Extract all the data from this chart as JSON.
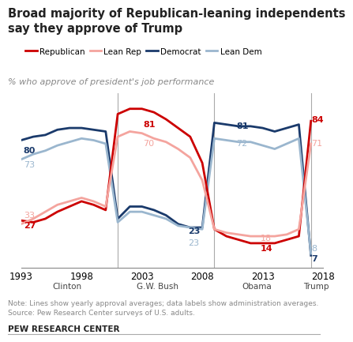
{
  "title": "Broad majority of Republican-leaning independents\nsay they approve of Trump",
  "subtitle": "% who approve of president's job performance",
  "note": "Note: Lines show yearly approval averages; data labels show administration averages.\nSource: Pew Research Center surveys of U.S. adults.",
  "source_label": "PEW RESEARCH CENTER",
  "colors": {
    "republican": "#CC0000",
    "lean_rep": "#F4A49E",
    "democrat": "#1A3A6B",
    "lean_dem": "#9AB6CE"
  },
  "series": {
    "republican": {
      "years": [
        1993,
        1994,
        1995,
        1996,
        1997,
        1998,
        1999,
        2000,
        2001,
        2002,
        2003,
        2004,
        2005,
        2006,
        2007,
        2008,
        2009,
        2010,
        2011,
        2012,
        2013,
        2014,
        2015,
        2016,
        2017
      ],
      "values": [
        27,
        26,
        28,
        32,
        35,
        38,
        36,
        33,
        88,
        91,
        91,
        89,
        85,
        80,
        75,
        60,
        22,
        18,
        16,
        14,
        14,
        14,
        16,
        18,
        84
      ]
    },
    "lean_rep": {
      "years": [
        1993,
        1994,
        1995,
        1996,
        1997,
        1998,
        1999,
        2000,
        2001,
        2002,
        2003,
        2004,
        2005,
        2006,
        2007,
        2008,
        2009,
        2010,
        2011,
        2012,
        2013,
        2014,
        2015,
        2016,
        2017
      ],
      "values": [
        25,
        28,
        32,
        36,
        38,
        40,
        38,
        35,
        75,
        78,
        77,
        74,
        72,
        68,
        63,
        50,
        22,
        20,
        19,
        18,
        18,
        18,
        19,
        22,
        71
      ]
    },
    "democrat": {
      "years": [
        1993,
        1994,
        1995,
        1996,
        1997,
        1998,
        1999,
        2000,
        2001,
        2002,
        2003,
        2004,
        2005,
        2006,
        2007,
        2008,
        2009,
        2010,
        2011,
        2012,
        2013,
        2014,
        2015,
        2016,
        2017
      ],
      "values": [
        73,
        75,
        76,
        79,
        80,
        80,
        79,
        78,
        28,
        35,
        35,
        33,
        30,
        25,
        23,
        23,
        83,
        82,
        81,
        81,
        80,
        78,
        80,
        82,
        7
      ]
    },
    "lean_dem": {
      "years": [
        1993,
        1994,
        1995,
        1996,
        1997,
        1998,
        1999,
        2000,
        2001,
        2002,
        2003,
        2004,
        2005,
        2006,
        2007,
        2008,
        2009,
        2010,
        2011,
        2012,
        2013,
        2014,
        2015,
        2016,
        2017
      ],
      "values": [
        62,
        65,
        67,
        70,
        72,
        74,
        73,
        71,
        26,
        32,
        32,
        30,
        28,
        24,
        23,
        22,
        74,
        73,
        72,
        72,
        70,
        68,
        71,
        74,
        8
      ]
    }
  },
  "admin_lines": [
    2001,
    2009,
    2017
  ],
  "admin_names": [
    {
      "name": "Clinton",
      "x": 1996.8
    },
    {
      "name": "G.W. Bush",
      "x": 2004.3
    },
    {
      "name": "Obama",
      "x": 2012.5
    },
    {
      "name": "Trump",
      "x": 2017.4
    }
  ],
  "xlim": [
    1993,
    2018
  ],
  "ylim": [
    0,
    100
  ],
  "xticks": [
    1993,
    1998,
    2003,
    2008,
    2013,
    2018
  ],
  "label_fontsize": 8.0,
  "background_color": "#FFFFFF"
}
